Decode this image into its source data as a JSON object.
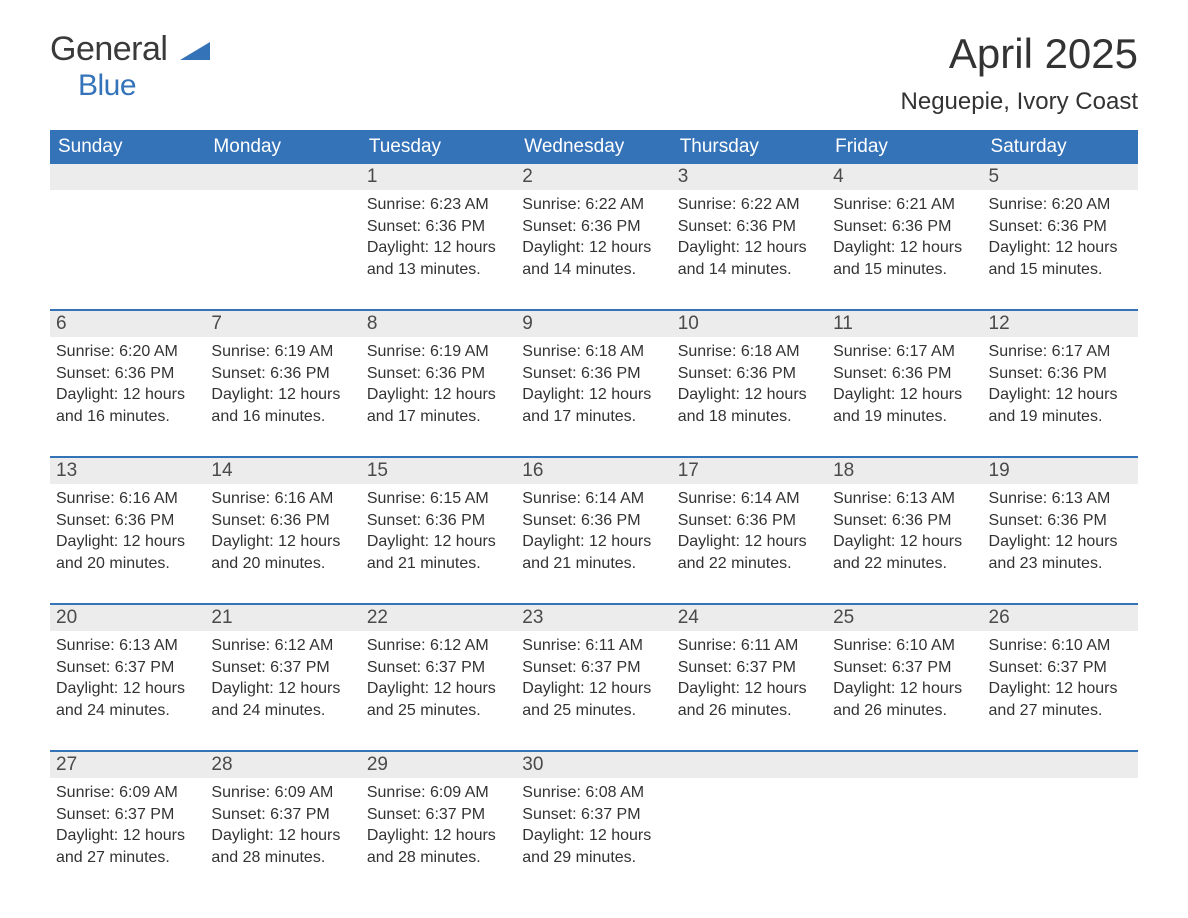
{
  "logo": {
    "word1": "General",
    "word2": "Blue",
    "flag_color": "#3573b9"
  },
  "title": "April 2025",
  "location": "Neguepie, Ivory Coast",
  "colors": {
    "header_bg": "#3573b9",
    "header_text": "#ffffff",
    "daynum_bg": "#ececec",
    "text": "#333333",
    "row_border": "#3573b9"
  },
  "fonts": {
    "title_pt": 42,
    "location_pt": 24,
    "weekday_pt": 19,
    "daynum_pt": 19,
    "body_pt": 16
  },
  "weekdays": [
    "Sunday",
    "Monday",
    "Tuesday",
    "Wednesday",
    "Thursday",
    "Friday",
    "Saturday"
  ],
  "weeks": [
    [
      {
        "num": "",
        "sunrise": "",
        "sunset": "",
        "daylight": ""
      },
      {
        "num": "",
        "sunrise": "",
        "sunset": "",
        "daylight": ""
      },
      {
        "num": "1",
        "sunrise": "Sunrise: 6:23 AM",
        "sunset": "Sunset: 6:36 PM",
        "daylight": "Daylight: 12 hours and 13 minutes."
      },
      {
        "num": "2",
        "sunrise": "Sunrise: 6:22 AM",
        "sunset": "Sunset: 6:36 PM",
        "daylight": "Daylight: 12 hours and 14 minutes."
      },
      {
        "num": "3",
        "sunrise": "Sunrise: 6:22 AM",
        "sunset": "Sunset: 6:36 PM",
        "daylight": "Daylight: 12 hours and 14 minutes."
      },
      {
        "num": "4",
        "sunrise": "Sunrise: 6:21 AM",
        "sunset": "Sunset: 6:36 PM",
        "daylight": "Daylight: 12 hours and 15 minutes."
      },
      {
        "num": "5",
        "sunrise": "Sunrise: 6:20 AM",
        "sunset": "Sunset: 6:36 PM",
        "daylight": "Daylight: 12 hours and 15 minutes."
      }
    ],
    [
      {
        "num": "6",
        "sunrise": "Sunrise: 6:20 AM",
        "sunset": "Sunset: 6:36 PM",
        "daylight": "Daylight: 12 hours and 16 minutes."
      },
      {
        "num": "7",
        "sunrise": "Sunrise: 6:19 AM",
        "sunset": "Sunset: 6:36 PM",
        "daylight": "Daylight: 12 hours and 16 minutes."
      },
      {
        "num": "8",
        "sunrise": "Sunrise: 6:19 AM",
        "sunset": "Sunset: 6:36 PM",
        "daylight": "Daylight: 12 hours and 17 minutes."
      },
      {
        "num": "9",
        "sunrise": "Sunrise: 6:18 AM",
        "sunset": "Sunset: 6:36 PM",
        "daylight": "Daylight: 12 hours and 17 minutes."
      },
      {
        "num": "10",
        "sunrise": "Sunrise: 6:18 AM",
        "sunset": "Sunset: 6:36 PM",
        "daylight": "Daylight: 12 hours and 18 minutes."
      },
      {
        "num": "11",
        "sunrise": "Sunrise: 6:17 AM",
        "sunset": "Sunset: 6:36 PM",
        "daylight": "Daylight: 12 hours and 19 minutes."
      },
      {
        "num": "12",
        "sunrise": "Sunrise: 6:17 AM",
        "sunset": "Sunset: 6:36 PM",
        "daylight": "Daylight: 12 hours and 19 minutes."
      }
    ],
    [
      {
        "num": "13",
        "sunrise": "Sunrise: 6:16 AM",
        "sunset": "Sunset: 6:36 PM",
        "daylight": "Daylight: 12 hours and 20 minutes."
      },
      {
        "num": "14",
        "sunrise": "Sunrise: 6:16 AM",
        "sunset": "Sunset: 6:36 PM",
        "daylight": "Daylight: 12 hours and 20 minutes."
      },
      {
        "num": "15",
        "sunrise": "Sunrise: 6:15 AM",
        "sunset": "Sunset: 6:36 PM",
        "daylight": "Daylight: 12 hours and 21 minutes."
      },
      {
        "num": "16",
        "sunrise": "Sunrise: 6:14 AM",
        "sunset": "Sunset: 6:36 PM",
        "daylight": "Daylight: 12 hours and 21 minutes."
      },
      {
        "num": "17",
        "sunrise": "Sunrise: 6:14 AM",
        "sunset": "Sunset: 6:36 PM",
        "daylight": "Daylight: 12 hours and 22 minutes."
      },
      {
        "num": "18",
        "sunrise": "Sunrise: 6:13 AM",
        "sunset": "Sunset: 6:36 PM",
        "daylight": "Daylight: 12 hours and 22 minutes."
      },
      {
        "num": "19",
        "sunrise": "Sunrise: 6:13 AM",
        "sunset": "Sunset: 6:36 PM",
        "daylight": "Daylight: 12 hours and 23 minutes."
      }
    ],
    [
      {
        "num": "20",
        "sunrise": "Sunrise: 6:13 AM",
        "sunset": "Sunset: 6:37 PM",
        "daylight": "Daylight: 12 hours and 24 minutes."
      },
      {
        "num": "21",
        "sunrise": "Sunrise: 6:12 AM",
        "sunset": "Sunset: 6:37 PM",
        "daylight": "Daylight: 12 hours and 24 minutes."
      },
      {
        "num": "22",
        "sunrise": "Sunrise: 6:12 AM",
        "sunset": "Sunset: 6:37 PM",
        "daylight": "Daylight: 12 hours and 25 minutes."
      },
      {
        "num": "23",
        "sunrise": "Sunrise: 6:11 AM",
        "sunset": "Sunset: 6:37 PM",
        "daylight": "Daylight: 12 hours and 25 minutes."
      },
      {
        "num": "24",
        "sunrise": "Sunrise: 6:11 AM",
        "sunset": "Sunset: 6:37 PM",
        "daylight": "Daylight: 12 hours and 26 minutes."
      },
      {
        "num": "25",
        "sunrise": "Sunrise: 6:10 AM",
        "sunset": "Sunset: 6:37 PM",
        "daylight": "Daylight: 12 hours and 26 minutes."
      },
      {
        "num": "26",
        "sunrise": "Sunrise: 6:10 AM",
        "sunset": "Sunset: 6:37 PM",
        "daylight": "Daylight: 12 hours and 27 minutes."
      }
    ],
    [
      {
        "num": "27",
        "sunrise": "Sunrise: 6:09 AM",
        "sunset": "Sunset: 6:37 PM",
        "daylight": "Daylight: 12 hours and 27 minutes."
      },
      {
        "num": "28",
        "sunrise": "Sunrise: 6:09 AM",
        "sunset": "Sunset: 6:37 PM",
        "daylight": "Daylight: 12 hours and 28 minutes."
      },
      {
        "num": "29",
        "sunrise": "Sunrise: 6:09 AM",
        "sunset": "Sunset: 6:37 PM",
        "daylight": "Daylight: 12 hours and 28 minutes."
      },
      {
        "num": "30",
        "sunrise": "Sunrise: 6:08 AM",
        "sunset": "Sunset: 6:37 PM",
        "daylight": "Daylight: 12 hours and 29 minutes."
      },
      {
        "num": "",
        "sunrise": "",
        "sunset": "",
        "daylight": ""
      },
      {
        "num": "",
        "sunrise": "",
        "sunset": "",
        "daylight": ""
      },
      {
        "num": "",
        "sunrise": "",
        "sunset": "",
        "daylight": ""
      }
    ]
  ]
}
